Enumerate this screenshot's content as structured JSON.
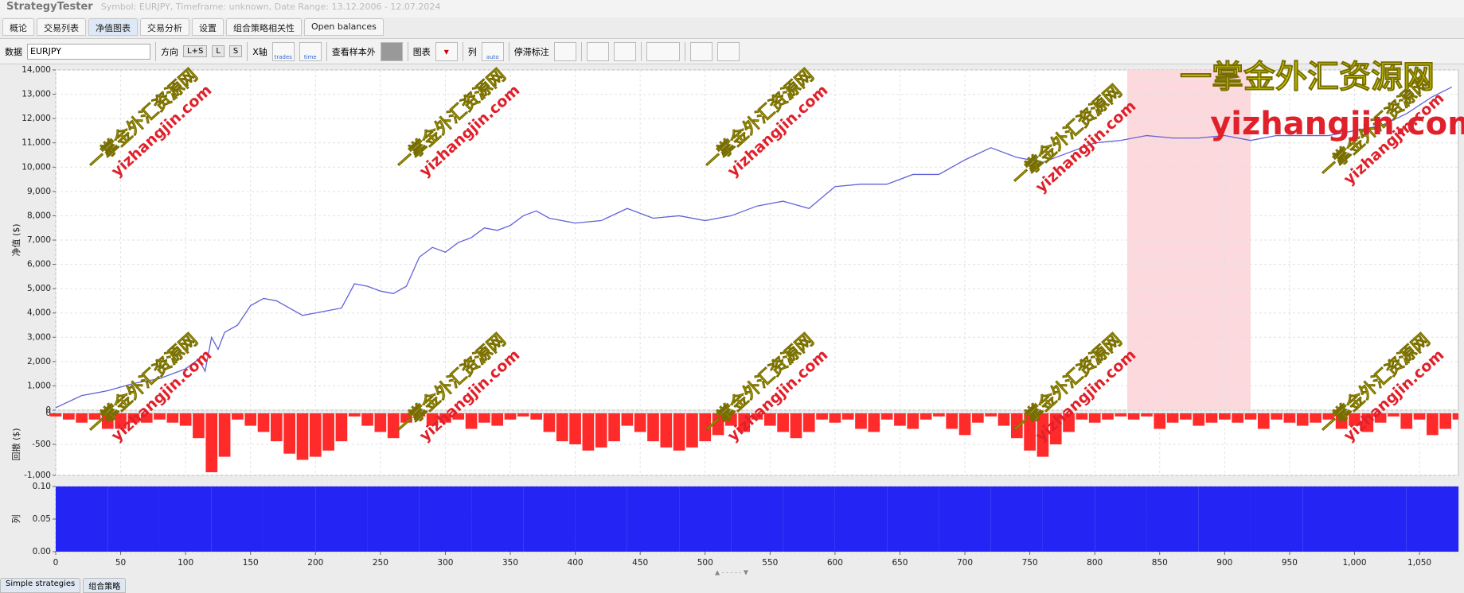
{
  "header": {
    "app": "StrategyTester",
    "info": "Symbol: EURJPY, Timeframe: unknown, Date Range: 13.12.2006 - 12.07.2024"
  },
  "tabs": [
    "概论",
    "交易列表",
    "净值图表",
    "交易分析",
    "设置",
    "组合策略相关性",
    "Open balances"
  ],
  "toolbar": {
    "data_label": "数据",
    "symbol": "EURJPY",
    "direction_label": "方向",
    "directions": [
      "L+S",
      "L",
      "S"
    ],
    "x_axis_label": "X轴",
    "x_modes": [
      "trades",
      "time"
    ],
    "out_of_sample": "查看样本外",
    "chart_label": "图表",
    "column_label": "列",
    "column_mode": "auto",
    "stagnation_label": "停滞标注"
  },
  "bottom_tabs": [
    "Simple strategies",
    "组合策略"
  ],
  "watermark": {
    "cn": "一掌金外汇资源网",
    "en": "yizhangjin.com"
  },
  "chart_data": [
    {
      "type": "line",
      "ylabel": "净值 ($)",
      "grid": true,
      "xlim": [
        0,
        1080
      ],
      "ylim": [
        0,
        14000
      ],
      "yticks": [
        0,
        {
          "value": 1000,
          "label": "1,000"
        },
        {
          "value": 2000,
          "label": "2,000"
        },
        {
          "value": 3000,
          "label": "3,000"
        },
        {
          "value": 4000,
          "label": "4,000"
        },
        {
          "value": 5000,
          "label": "5,000"
        },
        {
          "value": 6000,
          "label": "6,000"
        },
        {
          "value": 7000,
          "label": "7,000"
        },
        {
          "value": 8000,
          "label": "8,000"
        },
        {
          "value": 9000,
          "label": "9,000"
        },
        {
          "value": 10000,
          "label": "10,000"
        },
        {
          "value": 11000,
          "label": "11,000"
        },
        {
          "value": 12000,
          "label": "12,000"
        },
        {
          "value": 13000,
          "label": "13,000"
        },
        {
          "value": 14000,
          "label": "14,000"
        }
      ],
      "shaded_range": [
        825,
        920
      ],
      "shaded_color": "#fbd9dc",
      "x": [
        0,
        20,
        40,
        60,
        80,
        100,
        110,
        115,
        120,
        125,
        130,
        140,
        150,
        160,
        170,
        180,
        190,
        200,
        210,
        220,
        230,
        240,
        250,
        260,
        270,
        280,
        290,
        300,
        310,
        320,
        330,
        340,
        350,
        360,
        370,
        380,
        400,
        420,
        440,
        460,
        480,
        500,
        520,
        540,
        560,
        580,
        600,
        620,
        640,
        660,
        680,
        700,
        720,
        740,
        760,
        780,
        800,
        820,
        840,
        860,
        880,
        900,
        920,
        940,
        960,
        980,
        1000,
        1020,
        1040,
        1060,
        1075
      ],
      "series": [
        {
          "color": "#6262d8",
          "values": [
            100,
            600,
            800,
            1100,
            1300,
            1700,
            2100,
            1600,
            3000,
            2500,
            3200,
            3500,
            4300,
            4600,
            4500,
            4200,
            3900,
            4000,
            4100,
            4200,
            5200,
            5100,
            4900,
            4800,
            5100,
            6300,
            6700,
            6500,
            6900,
            7100,
            7500,
            7400,
            7600,
            8000,
            8200,
            7900,
            7700,
            7800,
            8300,
            7900,
            8000,
            7800,
            8000,
            8400,
            8600,
            8300,
            9200,
            9300,
            9300,
            9700,
            9700,
            10300,
            10800,
            10400,
            10200,
            10600,
            11000,
            11100,
            11300,
            11200,
            11200,
            11300,
            11100,
            11300,
            11300,
            11300,
            11500,
            11700,
            12200,
            12900,
            13300
          ]
        }
      ]
    },
    {
      "type": "bar",
      "ylabel": "回撤 ($)",
      "grid": true,
      "xlim": [
        0,
        1080
      ],
      "ylim": [
        -1000,
        0
      ],
      "yticks": [
        {
          "value": -1000,
          "label": "-1,000"
        },
        -500,
        0
      ],
      "x": [
        0,
        10,
        20,
        30,
        40,
        50,
        60,
        70,
        80,
        90,
        100,
        110,
        120,
        130,
        140,
        150,
        160,
        170,
        180,
        190,
        200,
        210,
        220,
        230,
        240,
        250,
        260,
        270,
        280,
        290,
        300,
        310,
        320,
        330,
        340,
        350,
        360,
        370,
        380,
        390,
        400,
        410,
        420,
        430,
        440,
        450,
        460,
        470,
        480,
        490,
        500,
        510,
        520,
        530,
        540,
        550,
        560,
        570,
        580,
        590,
        600,
        610,
        620,
        630,
        640,
        650,
        660,
        670,
        680,
        690,
        700,
        710,
        720,
        730,
        740,
        750,
        760,
        770,
        780,
        790,
        800,
        810,
        820,
        830,
        840,
        850,
        860,
        870,
        880,
        890,
        900,
        910,
        920,
        930,
        940,
        950,
        960,
        970,
        980,
        990,
        1000,
        1010,
        1020,
        1030,
        1040,
        1050,
        1060,
        1070,
        1080
      ],
      "series": [
        {
          "color": "#ff2a2a",
          "values": [
            -50,
            -100,
            -150,
            -100,
            -250,
            -250,
            -150,
            -150,
            -100,
            -150,
            -200,
            -400,
            -950,
            -700,
            -100,
            -200,
            -300,
            -450,
            -650,
            -750,
            -700,
            -600,
            -450,
            -50,
            -200,
            -300,
            -400,
            -150,
            -50,
            -200,
            -150,
            -100,
            -250,
            -150,
            -200,
            -100,
            -50,
            -100,
            -300,
            -450,
            -500,
            -600,
            -550,
            -450,
            -200,
            -300,
            -450,
            -550,
            -600,
            -550,
            -450,
            -350,
            -200,
            -300,
            -100,
            -200,
            -300,
            -400,
            -300,
            -100,
            -150,
            -100,
            -250,
            -300,
            -100,
            -200,
            -250,
            -100,
            -50,
            -250,
            -350,
            -150,
            -50,
            -200,
            -400,
            -600,
            -700,
            -500,
            -300,
            -100,
            -150,
            -100,
            -50,
            -100,
            -50,
            -250,
            -150,
            -100,
            -200,
            -150,
            -100,
            -150,
            -100,
            -250,
            -100,
            -150,
            -200,
            -150,
            -100,
            -250,
            -200,
            -300,
            -150,
            -50,
            -250,
            -100,
            -350,
            -250,
            -100
          ]
        }
      ]
    },
    {
      "type": "bar",
      "ylabel": "列",
      "grid": true,
      "xlim": [
        0,
        1080
      ],
      "ylim": [
        0,
        0.1
      ],
      "yticks": [
        {
          "value": 0,
          "label": "0.00"
        },
        {
          "value": 0.05,
          "label": "0.05"
        },
        {
          "value": 0.1,
          "label": "0.10"
        }
      ],
      "xticks": [
        0,
        50,
        100,
        150,
        200,
        250,
        300,
        350,
        400,
        450,
        500,
        550,
        600,
        650,
        700,
        750,
        800,
        850,
        900,
        950,
        {
          "value": 1000,
          "label": "1,000"
        },
        {
          "value": 1050,
          "label": "1,050"
        }
      ],
      "x": [
        0,
        40,
        80,
        120,
        160,
        200,
        240,
        280,
        320,
        360,
        400,
        440,
        480,
        520,
        560,
        600,
        640,
        680,
        720,
        760,
        800,
        840,
        880,
        920,
        960,
        1000,
        1040,
        1080
      ],
      "series": [
        {
          "color": "#2424f4",
          "values": [
            0.1,
            0.1,
            0.1,
            0.1,
            0.1,
            0.1,
            0.1,
            0.1,
            0.1,
            0.1,
            0.1,
            0.1,
            0.1,
            0.1,
            0.1,
            0.1,
            0.1,
            0.1,
            0.1,
            0.1,
            0.1,
            0.1,
            0.1,
            0.1,
            0.1,
            0.1,
            0.1,
            0.1
          ]
        }
      ]
    }
  ]
}
